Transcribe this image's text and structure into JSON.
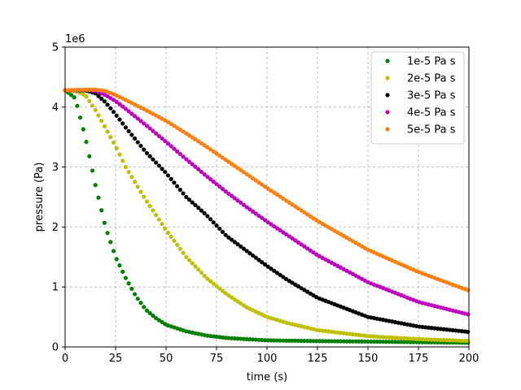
{
  "chart_data": {
    "type": "scatter",
    "xlabel": "time (s)",
    "ylabel": "pressure (Pa)",
    "y_offset_label": "1e6",
    "xlim": [
      0,
      200
    ],
    "ylim": [
      0,
      5000000
    ],
    "xticks": [
      0,
      25,
      50,
      75,
      100,
      125,
      150,
      175,
      200
    ],
    "xtick_labels": [
      "0",
      "25",
      "50",
      "75",
      "100",
      "125",
      "150",
      "175",
      "200"
    ],
    "yticks": [
      0,
      1000000,
      2000000,
      3000000,
      4000000,
      5000000
    ],
    "ytick_labels": [
      "0",
      "1",
      "2",
      "3",
      "4",
      "5"
    ],
    "grid": true,
    "legend_position": "top-right",
    "series": [
      {
        "name": "1e-5 Pa s",
        "color": "#008000",
        "x": [
          0,
          5,
          10,
          15,
          20,
          25,
          30,
          35,
          40,
          45,
          50,
          60,
          70,
          80,
          90,
          100,
          120,
          150,
          200
        ],
        "y": [
          4280000,
          4150000,
          3500000,
          2700000,
          2000000,
          1500000,
          1150000,
          850000,
          620000,
          480000,
          370000,
          260000,
          190000,
          150000,
          130000,
          110000,
          100000,
          90000,
          70000
        ]
      },
      {
        "name": "2e-5 Pa s",
        "color": "#bfbf00",
        "x": [
          0,
          5,
          10,
          15,
          20,
          25,
          30,
          40,
          50,
          60,
          70,
          80,
          90,
          100,
          110,
          125,
          150,
          175,
          200
        ],
        "y": [
          4280000,
          4270000,
          4200000,
          3950000,
          3650000,
          3350000,
          3000000,
          2450000,
          1950000,
          1500000,
          1150000,
          880000,
          660000,
          500000,
          400000,
          280000,
          180000,
          130000,
          100000
        ]
      },
      {
        "name": "3e-5 Pa s",
        "color": "#000000",
        "x": [
          0,
          10,
          15,
          20,
          25,
          30,
          40,
          50,
          60,
          70,
          80,
          90,
          100,
          110,
          125,
          150,
          175,
          200
        ],
        "y": [
          4280000,
          4280000,
          4230000,
          4080000,
          3880000,
          3660000,
          3250000,
          2900000,
          2500000,
          2200000,
          1850000,
          1600000,
          1350000,
          1120000,
          820000,
          500000,
          340000,
          250000
        ]
      },
      {
        "name": "4e-5 Pa s",
        "color": "#bf00bf",
        "x": [
          0,
          10,
          15,
          20,
          25,
          30,
          40,
          50,
          60,
          70,
          80,
          90,
          100,
          125,
          150,
          175,
          200
        ],
        "y": [
          4280000,
          4290000,
          4270000,
          4200000,
          4100000,
          3970000,
          3700000,
          3420000,
          3130000,
          2850000,
          2580000,
          2330000,
          2090000,
          1530000,
          1080000,
          750000,
          540000
        ]
      },
      {
        "name": "5e-5 Pa s",
        "color": "#ff7f0e",
        "x": [
          0,
          10,
          15,
          20,
          25,
          30,
          40,
          50,
          60,
          70,
          80,
          90,
          100,
          125,
          150,
          175,
          200
        ],
        "y": [
          4280000,
          4290000,
          4290000,
          4270000,
          4200000,
          4120000,
          3950000,
          3770000,
          3560000,
          3340000,
          3110000,
          2880000,
          2650000,
          2100000,
          1620000,
          1250000,
          940000
        ]
      }
    ]
  }
}
